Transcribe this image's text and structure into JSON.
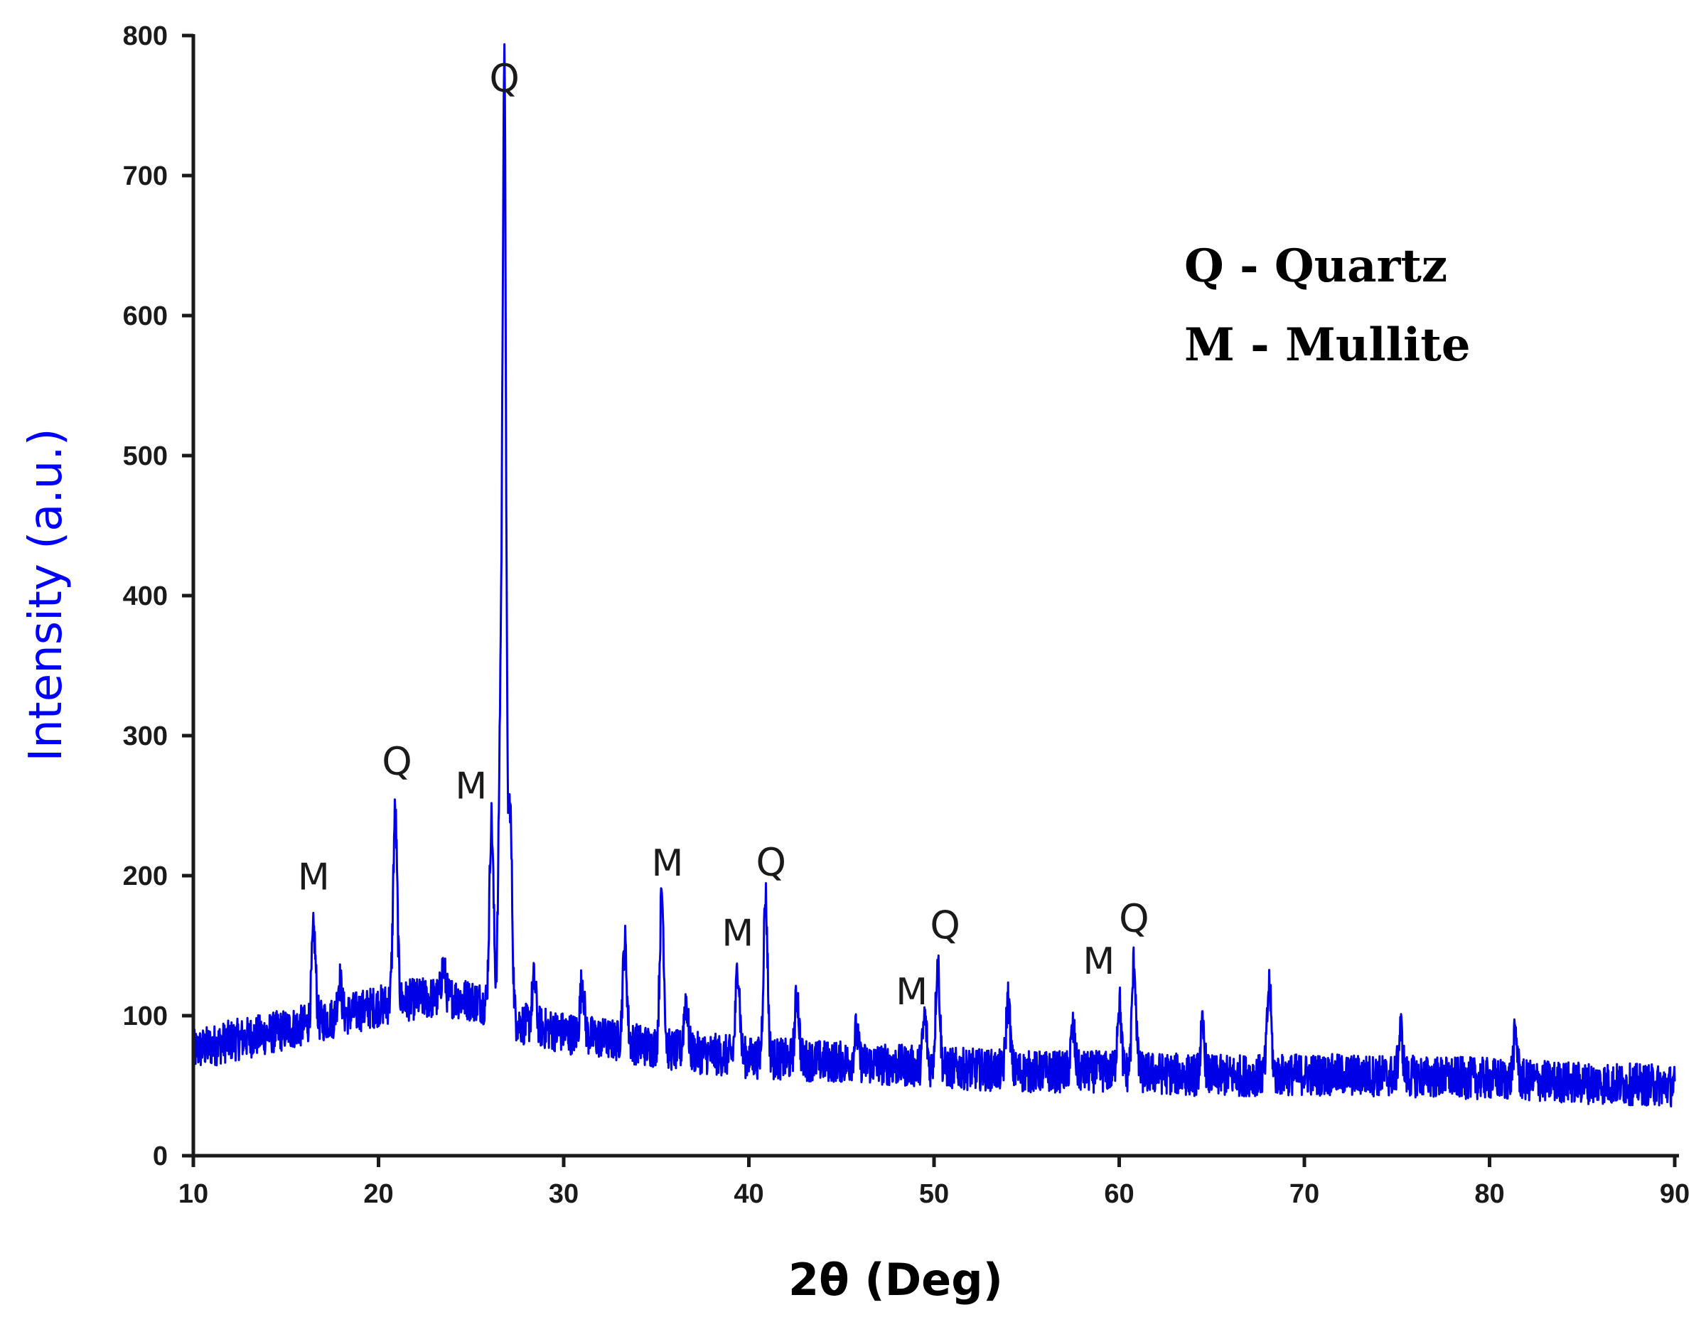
{
  "chart_data": {
    "type": "line",
    "xlabel": "2θ (Deg)",
    "ylabel": "Intensity (a.u.)",
    "xlim": [
      10,
      90
    ],
    "ylim": [
      0,
      800
    ],
    "x_ticks": [
      "10",
      "20",
      "30",
      "40",
      "50",
      "60",
      "70",
      "80",
      "90"
    ],
    "y_ticks": [
      "0",
      "100",
      "200",
      "300",
      "400",
      "500",
      "600",
      "700",
      "800"
    ],
    "grid": false,
    "legend": {
      "placement": "top-right",
      "entries": [
        "Q - Quartz",
        "M - Mullite"
      ]
    },
    "series": [
      {
        "color": "#0000e6",
        "baseline": [
          [
            10,
            75
          ],
          [
            12,
            82
          ],
          [
            14,
            87
          ],
          [
            16,
            93
          ],
          [
            18,
            100
          ],
          [
            20,
            107
          ],
          [
            22,
            112
          ],
          [
            24,
            113
          ],
          [
            25.5,
            110
          ],
          [
            27.5,
            95
          ],
          [
            30,
            88
          ],
          [
            33,
            82
          ],
          [
            36,
            75
          ],
          [
            40,
            70
          ],
          [
            45,
            67
          ],
          [
            50,
            63
          ],
          [
            55,
            60
          ],
          [
            60,
            60
          ],
          [
            65,
            57
          ],
          [
            70,
            58
          ],
          [
            75,
            57
          ],
          [
            80,
            55
          ],
          [
            85,
            52
          ],
          [
            90,
            50
          ]
        ],
        "peaks": [
          {
            "x": 16.5,
            "y": 160
          },
          {
            "x": 17.9,
            "y": 125
          },
          {
            "x": 20.9,
            "y": 245
          },
          {
            "x": 23.5,
            "y": 135
          },
          {
            "x": 26.1,
            "y": 240
          },
          {
            "x": 26.6,
            "y": 320
          },
          {
            "x": 26.8,
            "y": 735
          },
          {
            "x": 27.1,
            "y": 250
          },
          {
            "x": 28.4,
            "y": 125
          },
          {
            "x": 31.0,
            "y": 125
          },
          {
            "x": 33.3,
            "y": 152
          },
          {
            "x": 35.3,
            "y": 187
          },
          {
            "x": 36.6,
            "y": 112
          },
          {
            "x": 39.4,
            "y": 135
          },
          {
            "x": 40.9,
            "y": 185
          },
          {
            "x": 42.6,
            "y": 115
          },
          {
            "x": 45.8,
            "y": 88
          },
          {
            "x": 49.5,
            "y": 98
          },
          {
            "x": 50.2,
            "y": 138
          },
          {
            "x": 54.0,
            "y": 112
          },
          {
            "x": 57.5,
            "y": 90
          },
          {
            "x": 60.0,
            "y": 110
          },
          {
            "x": 60.8,
            "y": 138
          },
          {
            "x": 64.5,
            "y": 90
          },
          {
            "x": 68.1,
            "y": 122
          },
          {
            "x": 75.2,
            "y": 90
          },
          {
            "x": 81.4,
            "y": 87
          }
        ]
      }
    ],
    "annotations": [
      {
        "text": "M",
        "x": 16.5,
        "y": 190
      },
      {
        "text": "Q",
        "x": 21.0,
        "y": 272
      },
      {
        "text": "M",
        "x": 25.0,
        "y": 255
      },
      {
        "text": "Q",
        "x": 26.8,
        "y": 760
      },
      {
        "text": "M",
        "x": 35.6,
        "y": 200
      },
      {
        "text": "Q",
        "x": 41.2,
        "y": 200
      },
      {
        "text": "M",
        "x": 39.4,
        "y": 150
      },
      {
        "text": "M",
        "x": 48.8,
        "y": 108
      },
      {
        "text": "Q",
        "x": 50.6,
        "y": 155
      },
      {
        "text": "M",
        "x": 58.9,
        "y": 130
      },
      {
        "text": "Q",
        "x": 60.8,
        "y": 160
      }
    ]
  }
}
